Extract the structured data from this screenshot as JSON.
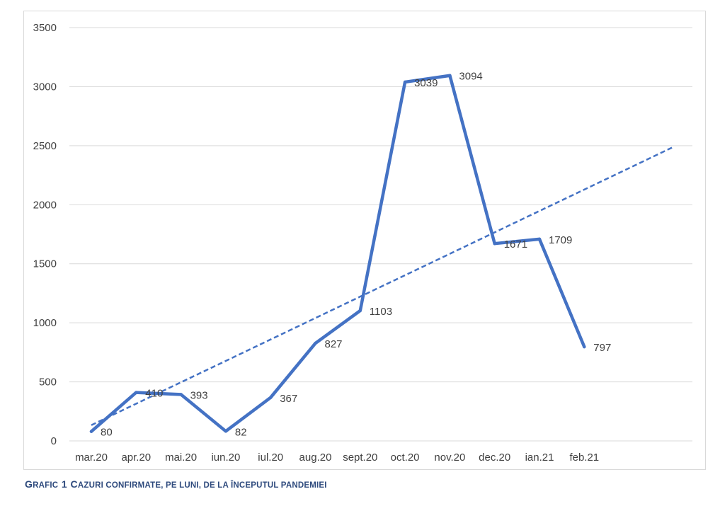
{
  "caption": {
    "prefix_initial": "G",
    "prefix_rest": "RAFIC",
    "number": "1",
    "title_initial": "C",
    "title_rest": "AZURI CONFIRMATE, PE LUNI, DE LA ÎNCEPUTUL PANDEMIEI"
  },
  "chart_data": {
    "type": "line",
    "categories": [
      "mar.20",
      "apr.20",
      "mai.20",
      "iun.20",
      "iul.20",
      "aug.20",
      "sept.20",
      "oct.20",
      "nov.20",
      "dec.20",
      "ian.21",
      "feb.21"
    ],
    "series": [
      {
        "values": [
          80,
          410,
          393,
          82,
          367,
          827,
          1103,
          3039,
          3094,
          1671,
          1709,
          797
        ],
        "color": "#4472c4"
      }
    ],
    "trendline": {
      "type": "linear",
      "style": "dashed",
      "color": "#4472c4"
    },
    "yticks": [
      "0",
      "500",
      "1000",
      "1500",
      "2000",
      "2500",
      "3000",
      "3500"
    ],
    "ylim": [
      0,
      3500
    ],
    "grid": true,
    "legend": "none"
  }
}
